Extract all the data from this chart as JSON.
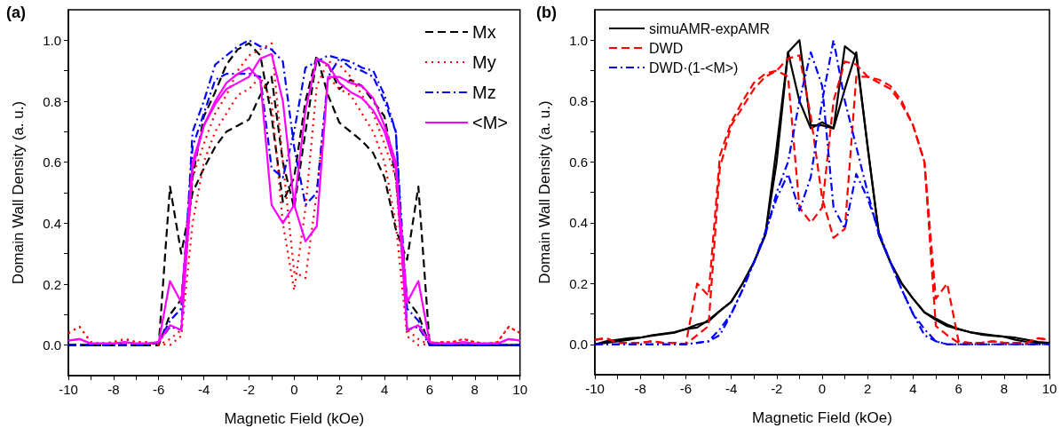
{
  "chart_data": [
    {
      "type": "line",
      "title": "(a)",
      "xlabel": "Magnetic Field (kOe)",
      "ylabel": "Domain Wall Density (a. u.)",
      "xlim": [
        -10,
        10
      ],
      "ylim": [
        -0.1,
        1.1
      ],
      "xticks": [
        -10,
        {
          "value": -9,
          "label": null
        },
        -8,
        {
          "value": -7,
          "label": null
        },
        -6,
        {
          "value": -5,
          "label": null
        },
        -4,
        {
          "value": -3,
          "label": null
        },
        -2,
        {
          "value": -1,
          "label": null
        },
        0,
        {
          "value": 1,
          "label": null
        },
        2,
        {
          "value": 3,
          "label": null
        },
        4,
        {
          "value": 5,
          "label": null
        },
        6,
        {
          "value": 7,
          "label": null
        },
        8,
        {
          "value": 9,
          "label": null
        },
        10
      ],
      "yticks": [
        {
          "value": 0,
          "label": "0.0"
        },
        {
          "value": 0.1,
          "label": null
        },
        0.2,
        {
          "value": 0.3,
          "label": null
        },
        0.4,
        {
          "value": 0.5,
          "label": null
        },
        0.6,
        {
          "value": 0.7,
          "label": null
        },
        0.8,
        {
          "value": 0.9,
          "label": null
        },
        {
          "value": 1,
          "label": "1.0"
        }
      ],
      "grid": false,
      "legend": "top right",
      "marker": "none",
      "series": [
        {
          "name": "Mx",
          "color": "#000000",
          "line_style": "dashed",
          "x": [
            -10,
            -9.5,
            -9,
            -8.5,
            -8,
            -7.5,
            -7,
            -6.5,
            -6,
            -5.5,
            -5,
            -4.5,
            -4,
            -3.5,
            -3,
            -2.5,
            -2,
            -1.5,
            -1,
            -0.5,
            0,
            0.5,
            1,
            1.5,
            2,
            2.5,
            3,
            3.5,
            4,
            4.5,
            5,
            5.5,
            6,
            6.5,
            7,
            7.5,
            8,
            8.5,
            9,
            9.5,
            10
          ],
          "values": [
            0,
            0,
            0,
            0,
            0,
            0,
            0,
            0,
            0,
            0.1,
            0.15,
            0.55,
            0.75,
            0.83,
            0.92,
            0.97,
            0.99,
            0.95,
            0.75,
            0.47,
            0.55,
            0.8,
            0.95,
            0.82,
            0.73,
            0.7,
            0.67,
            0.63,
            0.55,
            0.38,
            0.28,
            0.52,
            0,
            0,
            0,
            0,
            0,
            0,
            0,
            0,
            0
          ]
        },
        {
          "color": "#000000",
          "line_style": "dashed",
          "x": [
            -10,
            -9.5,
            -9,
            -8.5,
            -8,
            -7.5,
            -7,
            -6.5,
            -6,
            -5.5,
            -5,
            -4.5,
            -4,
            -3.5,
            -3,
            -2.5,
            -2,
            -1.5,
            -1,
            -0.5,
            0,
            0.5,
            1,
            1.5,
            2,
            2.5,
            3,
            3.5,
            4,
            4.5,
            5,
            5.5,
            6,
            6.5,
            7,
            7.5,
            8,
            8.5,
            9,
            9.5,
            10
          ],
          "values": [
            0,
            0,
            0,
            0,
            0,
            0,
            0,
            0,
            0,
            0.52,
            0.3,
            0.5,
            0.58,
            0.65,
            0.7,
            0.72,
            0.74,
            0.82,
            0.88,
            0.6,
            0.45,
            0.7,
            0.94,
            0.92,
            0.84,
            0.87,
            0.85,
            0.8,
            0.75,
            0.55,
            0.15,
            0.1,
            0,
            0,
            0,
            0,
            0,
            0,
            0,
            0,
            0
          ]
        },
        {
          "name": "My",
          "color": "#ff0000",
          "line_style": "dotted",
          "x": [
            -10,
            -9.5,
            -9,
            -8.5,
            -8,
            -7.5,
            -7,
            -6.5,
            -6,
            -5.5,
            -5,
            -4.5,
            -4,
            -3.5,
            -3,
            -2.5,
            -2,
            -1.5,
            -1,
            -0.5,
            0,
            0.5,
            1,
            1.5,
            2,
            2.5,
            3,
            3.5,
            4,
            4.5,
            5,
            5.5,
            6,
            6.5,
            7,
            7.5,
            8,
            8.5,
            9,
            9.5,
            10
          ],
          "values": [
            0.04,
            0.06,
            0.01,
            0.005,
            0.01,
            0.02,
            0.01,
            0.01,
            0.005,
            0,
            0.03,
            0.4,
            0.6,
            0.7,
            0.76,
            0.82,
            0.84,
            0.88,
            0.8,
            0.4,
            0.18,
            0.45,
            0.85,
            0.93,
            0.92,
            0.88,
            0.82,
            0.76,
            0.66,
            0.55,
            0.05,
            0.02,
            0,
            0.01,
            0.01,
            0.02,
            0.01,
            0.005,
            0.01,
            0.06,
            0.04
          ]
        },
        {
          "color": "#ff0000",
          "line_style": "dotted",
          "x": [
            -10,
            -9.5,
            -9,
            -8.5,
            -8,
            -7.5,
            -7,
            -6.5,
            -6,
            -5.5,
            -5,
            -4.5,
            -4,
            -3.5,
            -3,
            -2.5,
            -2,
            -1.5,
            -1,
            -0.5,
            0,
            0.5,
            1,
            1.5,
            2,
            2.5,
            3,
            3.5,
            4,
            4.5,
            5,
            5.5,
            6,
            6.5,
            7,
            7.5,
            8,
            8.5,
            9,
            9.5,
            10
          ],
          "values": [
            0.04,
            0.06,
            0.01,
            0.005,
            0.01,
            0.02,
            0.01,
            0.01,
            0,
            0.02,
            0.05,
            0.55,
            0.66,
            0.76,
            0.82,
            0.9,
            0.95,
            0.97,
            0.99,
            0.6,
            0.24,
            0.22,
            0.5,
            0.88,
            0.84,
            0.82,
            0.76,
            0.7,
            0.6,
            0.4,
            0.03,
            0,
            0.005,
            0.01,
            0.01,
            0.02,
            0.01,
            0.005,
            0.01,
            0.06,
            0.04
          ]
        },
        {
          "name": "Mz",
          "color": "#0000ff",
          "line_style": "dashdot",
          "x": [
            -10,
            -9.5,
            -9,
            -8.5,
            -8,
            -7.5,
            -7,
            -6.5,
            -6,
            -5.5,
            -5,
            -4.5,
            -4,
            -3.5,
            -3,
            -2.5,
            -2,
            -1.5,
            -1,
            -0.5,
            0,
            0.5,
            1,
            1.5,
            2,
            2.5,
            3,
            3.5,
            4,
            4.5,
            5,
            5.5,
            6,
            6.5,
            7,
            7.5,
            8,
            8.5,
            9,
            9.5,
            10
          ],
          "values": [
            0,
            0,
            0,
            0,
            0,
            0,
            0,
            0,
            0.01,
            0.08,
            0.12,
            0.65,
            0.76,
            0.87,
            0.89,
            0.89,
            0.89,
            0.88,
            0.58,
            0.55,
            0.7,
            0.91,
            0.93,
            0.95,
            0.94,
            0.91,
            0.9,
            0.88,
            0.8,
            0.7,
            0.05,
            0.06,
            0,
            0,
            0,
            0,
            0,
            0,
            0,
            0,
            0
          ]
        },
        {
          "color": "#0000ff",
          "line_style": "dashdot",
          "x": [
            -10,
            -9.5,
            -9,
            -8.5,
            -8,
            -7.5,
            -7,
            -6.5,
            -6,
            -5.5,
            -5,
            -4.5,
            -4,
            -3.5,
            -3,
            -2.5,
            -2,
            -1.5,
            -1,
            -0.5,
            0,
            0.5,
            1,
            1.5,
            2,
            2.5,
            3,
            3.5,
            4,
            4.5,
            5,
            5.5,
            6,
            6.5,
            7,
            7.5,
            8,
            8.5,
            9,
            9.5,
            10
          ],
          "values": [
            0,
            0,
            0,
            0,
            0,
            0,
            0,
            0,
            0.01,
            0.06,
            0.05,
            0.7,
            0.8,
            0.92,
            0.95,
            0.98,
            1,
            0.98,
            0.97,
            0.93,
            0.65,
            0.46,
            0.5,
            0.88,
            0.94,
            0.93,
            0.91,
            0.9,
            0.82,
            0.7,
            0.12,
            0.08,
            0,
            0,
            0,
            0,
            0,
            0,
            0,
            0,
            0
          ]
        },
        {
          "name": "<M>",
          "color": "#ff00ff",
          "line_style": "solid",
          "x": [
            -10,
            -9.5,
            -9,
            -8.5,
            -8,
            -7.5,
            -7,
            -6.5,
            -6,
            -5.5,
            -5,
            -4.5,
            -4,
            -3.5,
            -3,
            -2.5,
            -2,
            -1.5,
            -1,
            -0.5,
            0,
            0.5,
            1,
            1.5,
            2,
            2.5,
            3,
            3.5,
            4,
            4.5,
            5,
            5.5,
            6,
            6.5,
            7,
            7.5,
            8,
            8.5,
            9,
            9.5,
            10
          ],
          "values": [
            0.015,
            0.02,
            0.005,
            0.005,
            0.005,
            0.01,
            0.005,
            0.005,
            0.01,
            0.21,
            0.14,
            0.6,
            0.72,
            0.8,
            0.86,
            0.89,
            0.91,
            0.87,
            0.46,
            0.4,
            0.46,
            0.77,
            0.94,
            0.92,
            0.86,
            0.83,
            0.81,
            0.77,
            0.7,
            0.58,
            0.05,
            0.065,
            0.01,
            0.005,
            0.005,
            0.01,
            0.005,
            0.005,
            0.005,
            0.02,
            0.015
          ]
        },
        {
          "color": "#ff00ff",
          "line_style": "solid",
          "x": [
            -10,
            -9.5,
            -9,
            -8.5,
            -8,
            -7.5,
            -7,
            -6.5,
            -6,
            -5.5,
            -5,
            -4.5,
            -4,
            -3.5,
            -3,
            -2.5,
            -2,
            -1.5,
            -1,
            -0.5,
            0,
            0.5,
            1,
            1.5,
            2,
            2.5,
            3,
            3.5,
            4,
            4.5,
            5,
            5.5,
            6,
            6.5,
            7,
            7.5,
            8,
            8.5,
            9,
            9.5,
            10
          ],
          "values": [
            0.015,
            0.02,
            0.005,
            0.005,
            0.005,
            0.01,
            0.005,
            0.005,
            0.01,
            0.065,
            0.05,
            0.58,
            0.72,
            0.79,
            0.84,
            0.86,
            0.88,
            0.94,
            0.955,
            0.8,
            0.46,
            0.34,
            0.39,
            0.88,
            0.88,
            0.86,
            0.85,
            0.81,
            0.72,
            0.6,
            0.14,
            0.21,
            0.01,
            0.005,
            0.005,
            0.01,
            0.005,
            0.005,
            0.005,
            0.02,
            0.015
          ]
        }
      ]
    },
    {
      "type": "line",
      "title": "(b)",
      "xlabel": "Magnetic Field (kOe)",
      "ylabel": "Domain Wall Density (a. u.)",
      "xlim": [
        -10,
        10
      ],
      "ylim": [
        -0.1,
        1.1
      ],
      "xticks": [
        -10,
        {
          "value": -9,
          "label": null
        },
        -8,
        {
          "value": -7,
          "label": null
        },
        -6,
        {
          "value": -5,
          "label": null
        },
        -4,
        {
          "value": -3,
          "label": null
        },
        -2,
        {
          "value": -1,
          "label": null
        },
        0,
        {
          "value": 1,
          "label": null
        },
        2,
        {
          "value": 3,
          "label": null
        },
        4,
        {
          "value": 5,
          "label": null
        },
        6,
        {
          "value": 7,
          "label": null
        },
        8,
        {
          "value": 9,
          "label": null
        },
        10
      ],
      "yticks": [
        {
          "value": 0,
          "label": "0.0"
        },
        {
          "value": 0.1,
          "label": null
        },
        0.2,
        {
          "value": 0.3,
          "label": null
        },
        0.4,
        {
          "value": 0.5,
          "label": null
        },
        0.6,
        {
          "value": 0.7,
          "label": null
        },
        0.8,
        {
          "value": 0.9,
          "label": null
        },
        {
          "value": 1,
          "label": "1.0"
        }
      ],
      "grid": false,
      "legend": "top left",
      "marker": "none",
      "series": [
        {
          "name": "simuAMR-expAMR",
          "color": "#000000",
          "line_style": "solid",
          "x": [
            -10,
            -9.5,
            -9,
            -8.5,
            -8,
            -7.5,
            -7,
            -6.5,
            -6,
            -5.5,
            -5,
            -4.5,
            -4,
            -3.5,
            -3,
            -2.5,
            -2,
            -1.5,
            -1,
            -0.5,
            0,
            0.5,
            1,
            1.5,
            2,
            2.5,
            3,
            3.5,
            4,
            4.5,
            5,
            5.5,
            6,
            6.5,
            7,
            7.5,
            8,
            8.5,
            9,
            9.5,
            10
          ],
          "values": [
            0,
            0.01,
            0.015,
            0.02,
            0.022,
            0.028,
            0.033,
            0.038,
            0.05,
            0.055,
            0.08,
            0.11,
            0.14,
            0.2,
            0.27,
            0.36,
            0.6,
            0.96,
            0.8,
            0.71,
            0.73,
            0.71,
            0.98,
            0.95,
            0.65,
            0.36,
            0.27,
            0.2,
            0.15,
            0.105,
            0.08,
            0.06,
            0.05,
            0.04,
            0.032,
            0.028,
            0.025,
            0.015,
            0.008,
            0.005,
            0.005
          ]
        },
        {
          "color": "#000000",
          "line_style": "solid",
          "x": [
            -10,
            -9.5,
            -9,
            -8.5,
            -8,
            -7.5,
            -7,
            -6.5,
            -6,
            -5.5,
            -5,
            -4.5,
            -4,
            -3.5,
            -3,
            -2.5,
            -2,
            -1.5,
            -1,
            -0.5,
            0,
            0.5,
            1,
            1.5,
            2,
            2.5,
            3,
            3.5,
            4,
            4.5,
            5,
            5.5,
            6,
            6.5,
            7,
            7.5,
            8,
            8.5,
            9,
            9.5,
            10
          ],
          "values": [
            0,
            0.005,
            0.01,
            0.015,
            0.022,
            0.03,
            0.035,
            0.04,
            0.05,
            0.065,
            0.075,
            0.11,
            0.14,
            0.2,
            0.27,
            0.36,
            0.65,
            0.96,
            1,
            0.72,
            0.72,
            0.71,
            0.84,
            0.96,
            0.65,
            0.36,
            0.27,
            0.2,
            0.15,
            0.105,
            0.085,
            0.065,
            0.05,
            0.04,
            0.035,
            0.03,
            0.025,
            0.022,
            0.015,
            0.008,
            0.005
          ]
        },
        {
          "name": "DWD",
          "color": "#ff0000",
          "line_style": "dashed",
          "x": [
            -10,
            -9.5,
            -9,
            -8.5,
            -8,
            -7.5,
            -7,
            -6.5,
            -6,
            -5.5,
            -5,
            -4.5,
            -4,
            -3.5,
            -3,
            -2.5,
            -2,
            -1.5,
            -1,
            -0.5,
            0,
            0.5,
            1,
            1.5,
            2,
            2.5,
            3,
            3.5,
            4,
            4.5,
            5,
            5.5,
            6,
            6.5,
            7,
            7.5,
            8,
            8.5,
            9,
            9.5,
            10
          ],
          "values": [
            0.015,
            0.02,
            0.005,
            0.005,
            0.005,
            0.01,
            0.005,
            0.005,
            0,
            0.2,
            0.16,
            0.62,
            0.73,
            0.8,
            0.86,
            0.89,
            0.9,
            0.88,
            0.45,
            0.4,
            0.45,
            0.8,
            0.93,
            0.92,
            0.88,
            0.86,
            0.84,
            0.79,
            0.72,
            0.6,
            0.06,
            0.03,
            0.005,
            0.005,
            0.005,
            0.01,
            0.005,
            0.005,
            0.005,
            0.02,
            0.015
          ]
        },
        {
          "color": "#ff0000",
          "line_style": "dashed",
          "x": [
            -10,
            -9.5,
            -9,
            -8.5,
            -8,
            -7.5,
            -7,
            -6.5,
            -6,
            -5.5,
            -5,
            -4.5,
            -4,
            -3.5,
            -3,
            -2.5,
            -2,
            -1.5,
            -1,
            -0.5,
            0,
            0.5,
            1,
            1.5,
            2,
            2.5,
            3,
            3.5,
            4,
            4.5,
            5,
            5.5,
            6,
            6.5,
            7,
            7.5,
            8,
            8.5,
            9,
            9.5,
            10
          ],
          "values": [
            0.015,
            0.02,
            0.005,
            0.005,
            0.005,
            0.01,
            0.005,
            0.005,
            0,
            0.03,
            0.06,
            0.58,
            0.72,
            0.78,
            0.84,
            0.88,
            0.9,
            0.94,
            0.95,
            0.75,
            0.48,
            0.35,
            0.38,
            0.88,
            0.88,
            0.87,
            0.85,
            0.8,
            0.72,
            0.6,
            0.15,
            0.2,
            0.01,
            0.005,
            0.005,
            0.01,
            0.005,
            0.005,
            0.005,
            0.02,
            0.015
          ]
        },
        {
          "name": "DWD·(1-<M>)",
          "color": "#0000ff",
          "line_style": "dashdot",
          "x": [
            -10,
            -9.5,
            -9,
            -8.5,
            -8,
            -7.5,
            -7,
            -6.5,
            -6,
            -5.5,
            -5,
            -4.5,
            -4,
            -3.5,
            -3,
            -2.5,
            -2,
            -1.5,
            -1,
            -0.5,
            0,
            0.5,
            1,
            1.5,
            2,
            2.5,
            3,
            3.5,
            4,
            4.5,
            5,
            5.5,
            6,
            6.5,
            7,
            7.5,
            8,
            8.5,
            9,
            9.5,
            10
          ],
          "values": [
            0,
            0,
            0,
            0,
            0,
            0,
            0,
            0,
            0,
            0.005,
            0.01,
            0.03,
            0.1,
            0.18,
            0.27,
            0.37,
            0.48,
            0.56,
            0.44,
            0.55,
            0.8,
            1,
            0.8,
            0.65,
            0.5,
            0.36,
            0.27,
            0.18,
            0.1,
            0.05,
            0.01,
            0,
            0,
            0,
            0,
            0,
            0,
            0,
            0,
            0,
            0
          ]
        },
        {
          "color": "#0000ff",
          "line_style": "dashdot",
          "x": [
            -10,
            -9.5,
            -9,
            -8.5,
            -8,
            -7.5,
            -7,
            -6.5,
            -6,
            -5.5,
            -5,
            -4.5,
            -4,
            -3.5,
            -3,
            -2.5,
            -2,
            -1.5,
            -1,
            -0.5,
            0,
            0.5,
            1,
            1.5,
            2,
            2.5,
            3,
            3.5,
            4,
            4.5,
            5,
            5.5,
            6,
            6.5,
            7,
            7.5,
            8,
            8.5,
            9,
            9.5,
            10
          ],
          "values": [
            0,
            0,
            0,
            0,
            0,
            0,
            0,
            0,
            0,
            0.005,
            0.01,
            0.05,
            0.1,
            0.18,
            0.27,
            0.36,
            0.5,
            0.6,
            0.8,
            0.96,
            0.85,
            0.45,
            0.38,
            0.56,
            0.48,
            0.37,
            0.27,
            0.18,
            0.1,
            0.03,
            0.01,
            0,
            0,
            0,
            0,
            0,
            0,
            0,
            0,
            0,
            0
          ]
        }
      ]
    }
  ]
}
